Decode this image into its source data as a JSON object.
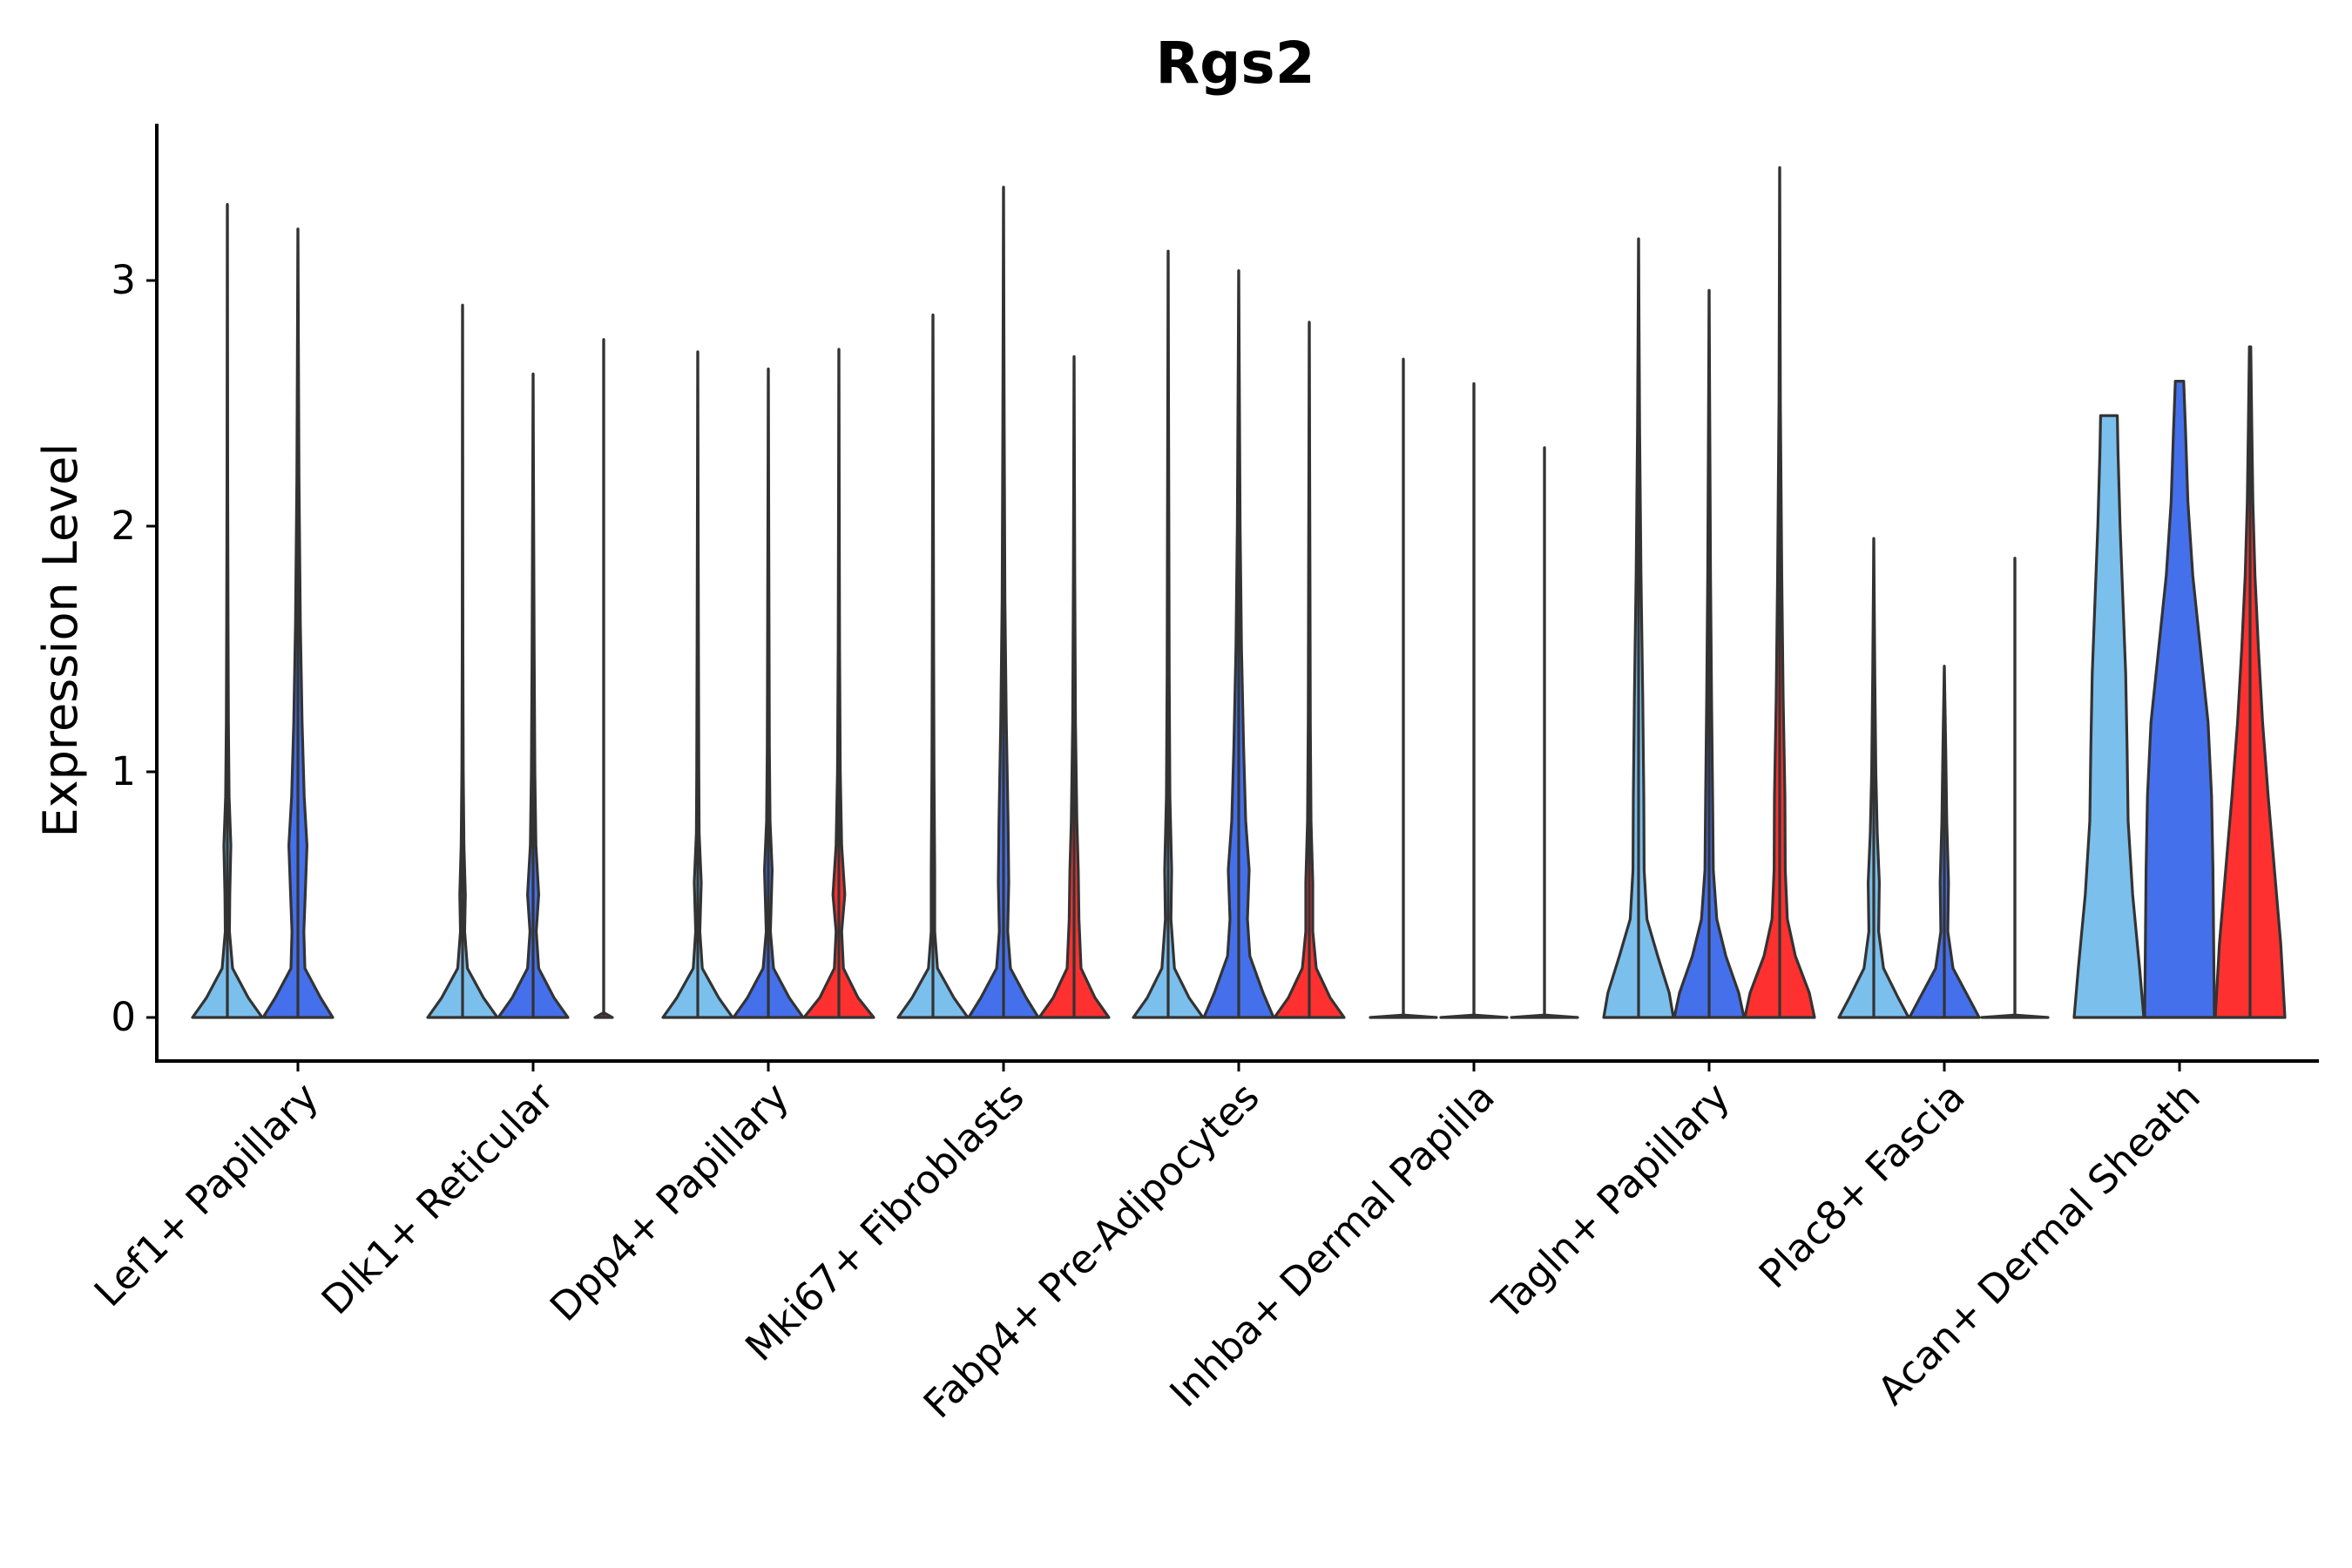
{
  "chart_data": {
    "type": "violin",
    "title": "Rgs2",
    "xlabel": "",
    "ylabel": "Expression Level",
    "ylim": [
      -0.17,
      3.62
    ],
    "yticks": [
      0,
      1,
      2,
      3
    ],
    "grid": false,
    "legend": "none",
    "categories": [
      "Lef1+ Papillary",
      "Dlk1+ Reticular",
      "Dpp4+ Papillary",
      "Mki67+ Fibroblasts",
      "Fabp4+ Pre-Adipocytes",
      "Inhba+ Dermal Papilla",
      "Tagln+ Papillary",
      "Plac8+ Fascia",
      "Acan+ Dermal Sheath"
    ],
    "groups": [
      {
        "name": "group 1",
        "color": "#7BBFEC"
      },
      {
        "name": "group 2",
        "color": "#4570EC"
      },
      {
        "name": "group 3",
        "color": "#FF3030"
      }
    ],
    "violins": [
      {
        "category": "Lef1+ Papillary",
        "group": 0,
        "max": 3.31,
        "profile": [
          [
            0,
            1.0
          ],
          [
            0.08,
            0.6
          ],
          [
            0.2,
            0.15
          ],
          [
            0.35,
            0.06
          ],
          [
            0.5,
            0.07
          ],
          [
            0.7,
            0.1
          ],
          [
            0.9,
            0.05
          ],
          [
            1.2,
            0.03
          ],
          [
            1.6,
            0.02
          ],
          [
            2.2,
            0.01
          ],
          [
            3.31,
            0.0
          ]
        ]
      },
      {
        "category": "Lef1+ Papillary",
        "group": 1,
        "max": 3.21,
        "profile": [
          [
            0,
            1.0
          ],
          [
            0.08,
            0.65
          ],
          [
            0.2,
            0.2
          ],
          [
            0.35,
            0.17
          ],
          [
            0.5,
            0.21
          ],
          [
            0.7,
            0.26
          ],
          [
            0.9,
            0.18
          ],
          [
            1.2,
            0.12
          ],
          [
            1.6,
            0.07
          ],
          [
            2.2,
            0.03
          ],
          [
            3.21,
            0.0
          ]
        ]
      },
      {
        "category": "Dlk1+ Reticular",
        "group": 0,
        "max": 2.9,
        "profile": [
          [
            0,
            1.0
          ],
          [
            0.08,
            0.6
          ],
          [
            0.2,
            0.14
          ],
          [
            0.35,
            0.06
          ],
          [
            0.5,
            0.08
          ],
          [
            0.7,
            0.04
          ],
          [
            1.0,
            0.02
          ],
          [
            1.5,
            0.01
          ],
          [
            2.9,
            0.0
          ]
        ]
      },
      {
        "category": "Dlk1+ Reticular",
        "group": 1,
        "max": 2.62,
        "profile": [
          [
            0,
            1.0
          ],
          [
            0.08,
            0.6
          ],
          [
            0.2,
            0.16
          ],
          [
            0.35,
            0.09
          ],
          [
            0.5,
            0.16
          ],
          [
            0.7,
            0.08
          ],
          [
            1.0,
            0.05
          ],
          [
            1.5,
            0.03
          ],
          [
            2.62,
            0.0
          ]
        ]
      },
      {
        "category": "Dlk1+ Reticular",
        "group": 2,
        "max": 2.76,
        "profile": [
          [
            0,
            0.25
          ],
          [
            0.02,
            0.0
          ],
          [
            2.76,
            0.0
          ]
        ]
      },
      {
        "category": "Dpp4+ Papillary",
        "group": 0,
        "max": 2.71,
        "profile": [
          [
            0,
            1.0
          ],
          [
            0.08,
            0.6
          ],
          [
            0.2,
            0.13
          ],
          [
            0.35,
            0.06
          ],
          [
            0.55,
            0.1
          ],
          [
            0.75,
            0.04
          ],
          [
            1.0,
            0.03
          ],
          [
            1.5,
            0.02
          ],
          [
            2.71,
            0.0
          ]
        ]
      },
      {
        "category": "Dpp4+ Papillary",
        "group": 1,
        "max": 2.64,
        "profile": [
          [
            0,
            1.0
          ],
          [
            0.08,
            0.6
          ],
          [
            0.2,
            0.15
          ],
          [
            0.35,
            0.06
          ],
          [
            0.6,
            0.11
          ],
          [
            0.8,
            0.05
          ],
          [
            1.1,
            0.03
          ],
          [
            1.6,
            0.02
          ],
          [
            2.64,
            0.0
          ]
        ]
      },
      {
        "category": "Dpp4+ Papillary",
        "group": 2,
        "max": 2.72,
        "profile": [
          [
            0,
            1.0
          ],
          [
            0.08,
            0.55
          ],
          [
            0.2,
            0.13
          ],
          [
            0.35,
            0.08
          ],
          [
            0.5,
            0.17
          ],
          [
            0.7,
            0.08
          ],
          [
            1.0,
            0.04
          ],
          [
            1.5,
            0.02
          ],
          [
            2.72,
            0.0
          ]
        ]
      },
      {
        "category": "Mki67+ Fibroblasts",
        "group": 0,
        "max": 2.86,
        "profile": [
          [
            0,
            1.0
          ],
          [
            0.08,
            0.6
          ],
          [
            0.2,
            0.13
          ],
          [
            0.35,
            0.05
          ],
          [
            0.6,
            0.05
          ],
          [
            1.0,
            0.03
          ],
          [
            1.5,
            0.02
          ],
          [
            2.86,
            0.0
          ]
        ]
      },
      {
        "category": "Mki67+ Fibroblasts",
        "group": 1,
        "max": 3.38,
        "profile": [
          [
            0,
            1.0
          ],
          [
            0.08,
            0.65
          ],
          [
            0.2,
            0.2
          ],
          [
            0.35,
            0.12
          ],
          [
            0.55,
            0.15
          ],
          [
            0.8,
            0.13
          ],
          [
            1.2,
            0.08
          ],
          [
            1.7,
            0.04
          ],
          [
            2.4,
            0.02
          ],
          [
            3.38,
            0.0
          ]
        ]
      },
      {
        "category": "Mki67+ Fibroblasts",
        "group": 2,
        "max": 2.69,
        "profile": [
          [
            0,
            1.0
          ],
          [
            0.08,
            0.6
          ],
          [
            0.2,
            0.2
          ],
          [
            0.4,
            0.14
          ],
          [
            0.6,
            0.12
          ],
          [
            0.8,
            0.08
          ],
          [
            1.2,
            0.04
          ],
          [
            1.8,
            0.02
          ],
          [
            2.69,
            0.0
          ]
        ]
      },
      {
        "category": "Fabp4+ Pre-Adipocytes",
        "group": 0,
        "max": 3.12,
        "profile": [
          [
            0,
            1.0
          ],
          [
            0.08,
            0.6
          ],
          [
            0.2,
            0.18
          ],
          [
            0.4,
            0.08
          ],
          [
            0.6,
            0.1
          ],
          [
            0.9,
            0.05
          ],
          [
            1.4,
            0.03
          ],
          [
            2.0,
            0.02
          ],
          [
            3.12,
            0.0
          ]
        ]
      },
      {
        "category": "Fabp4+ Pre-Adipocytes",
        "group": 1,
        "max": 3.04,
        "profile": [
          [
            0,
            1.0
          ],
          [
            0.1,
            0.7
          ],
          [
            0.25,
            0.32
          ],
          [
            0.4,
            0.25
          ],
          [
            0.6,
            0.3
          ],
          [
            0.8,
            0.2
          ],
          [
            1.1,
            0.14
          ],
          [
            1.5,
            0.08
          ],
          [
            2.0,
            0.04
          ],
          [
            3.04,
            0.0
          ]
        ]
      },
      {
        "category": "Fabp4+ Pre-Adipocytes",
        "group": 2,
        "max": 2.83,
        "profile": [
          [
            0,
            1.0
          ],
          [
            0.08,
            0.6
          ],
          [
            0.2,
            0.2
          ],
          [
            0.35,
            0.1
          ],
          [
            0.55,
            0.1
          ],
          [
            0.8,
            0.05
          ],
          [
            1.2,
            0.03
          ],
          [
            1.8,
            0.02
          ],
          [
            2.83,
            0.0
          ]
        ]
      },
      {
        "category": "Inhba+ Dermal Papilla",
        "group": 0,
        "max": 2.68,
        "profile": [
          [
            0,
            0.95
          ],
          [
            0.01,
            0.0
          ],
          [
            2.68,
            0.0
          ]
        ]
      },
      {
        "category": "Inhba+ Dermal Papilla",
        "group": 1,
        "max": 2.58,
        "profile": [
          [
            0,
            0.95
          ],
          [
            0.01,
            0.0
          ],
          [
            2.58,
            0.0
          ]
        ]
      },
      {
        "category": "Inhba+ Dermal Papilla",
        "group": 2,
        "max": 2.32,
        "profile": [
          [
            0,
            0.95
          ],
          [
            0.01,
            0.0
          ],
          [
            2.32,
            0.0
          ]
        ]
      },
      {
        "category": "Tagln+ Papillary",
        "group": 0,
        "max": 3.17,
        "profile": [
          [
            0,
            1.0
          ],
          [
            0.1,
            0.88
          ],
          [
            0.25,
            0.55
          ],
          [
            0.4,
            0.24
          ],
          [
            0.6,
            0.16
          ],
          [
            0.9,
            0.15
          ],
          [
            1.3,
            0.12
          ],
          [
            1.8,
            0.07
          ],
          [
            2.4,
            0.03
          ],
          [
            3.17,
            0.0
          ]
        ]
      },
      {
        "category": "Tagln+ Papillary",
        "group": 1,
        "max": 2.96,
        "profile": [
          [
            0,
            1.0
          ],
          [
            0.1,
            0.85
          ],
          [
            0.25,
            0.48
          ],
          [
            0.4,
            0.22
          ],
          [
            0.6,
            0.12
          ],
          [
            0.9,
            0.1
          ],
          [
            1.3,
            0.07
          ],
          [
            1.8,
            0.04
          ],
          [
            2.96,
            0.0
          ]
        ]
      },
      {
        "category": "Tagln+ Papillary",
        "group": 2,
        "max": 3.46,
        "profile": [
          [
            0,
            1.0
          ],
          [
            0.1,
            0.85
          ],
          [
            0.25,
            0.45
          ],
          [
            0.4,
            0.22
          ],
          [
            0.6,
            0.16
          ],
          [
            0.9,
            0.15
          ],
          [
            1.3,
            0.1
          ],
          [
            1.8,
            0.06
          ],
          [
            2.5,
            0.02
          ],
          [
            3.46,
            0.0
          ]
        ]
      },
      {
        "category": "Plac8+ Fascia",
        "group": 0,
        "max": 1.95,
        "profile": [
          [
            0,
            1.0
          ],
          [
            0.08,
            0.7
          ],
          [
            0.2,
            0.28
          ],
          [
            0.35,
            0.14
          ],
          [
            0.55,
            0.16
          ],
          [
            0.75,
            0.1
          ],
          [
            1.0,
            0.06
          ],
          [
            1.4,
            0.03
          ],
          [
            1.95,
            0.0
          ]
        ]
      },
      {
        "category": "Plac8+ Fascia",
        "group": 1,
        "max": 1.43,
        "profile": [
          [
            0,
            1.0
          ],
          [
            0.08,
            0.7
          ],
          [
            0.2,
            0.25
          ],
          [
            0.35,
            0.1
          ],
          [
            0.55,
            0.12
          ],
          [
            0.8,
            0.07
          ],
          [
            1.1,
            0.04
          ],
          [
            1.43,
            0.0
          ]
        ]
      },
      {
        "category": "Plac8+ Fascia",
        "group": 2,
        "max": 1.87,
        "profile": [
          [
            0,
            0.95
          ],
          [
            0.01,
            0.0
          ],
          [
            1.87,
            0.0
          ]
        ]
      },
      {
        "category": "Acan+ Dermal Sheath",
        "group": 0,
        "max": 2.45,
        "profile": [
          [
            0,
            1.0
          ],
          [
            0.2,
            0.88
          ],
          [
            0.5,
            0.68
          ],
          [
            0.8,
            0.55
          ],
          [
            1.1,
            0.52
          ],
          [
            1.4,
            0.48
          ],
          [
            1.7,
            0.4
          ],
          [
            2.0,
            0.32
          ],
          [
            2.3,
            0.26
          ],
          [
            2.45,
            0.24
          ]
        ]
      },
      {
        "category": "Acan+ Dermal Sheath",
        "group": 1,
        "max": 2.59,
        "profile": [
          [
            0,
            1.0
          ],
          [
            0.3,
            0.98
          ],
          [
            0.6,
            0.96
          ],
          [
            0.9,
            0.92
          ],
          [
            1.2,
            0.82
          ],
          [
            1.5,
            0.6
          ],
          [
            1.8,
            0.38
          ],
          [
            2.1,
            0.24
          ],
          [
            2.4,
            0.17
          ],
          [
            2.59,
            0.12
          ]
        ]
      },
      {
        "category": "Acan+ Dermal Sheath",
        "group": 2,
        "max": 2.73,
        "profile": [
          [
            0,
            1.0
          ],
          [
            0.3,
            0.88
          ],
          [
            0.6,
            0.7
          ],
          [
            0.9,
            0.52
          ],
          [
            1.2,
            0.36
          ],
          [
            1.5,
            0.24
          ],
          [
            1.8,
            0.14
          ],
          [
            2.1,
            0.08
          ],
          [
            2.4,
            0.05
          ],
          [
            2.73,
            0.02
          ]
        ]
      }
    ]
  }
}
